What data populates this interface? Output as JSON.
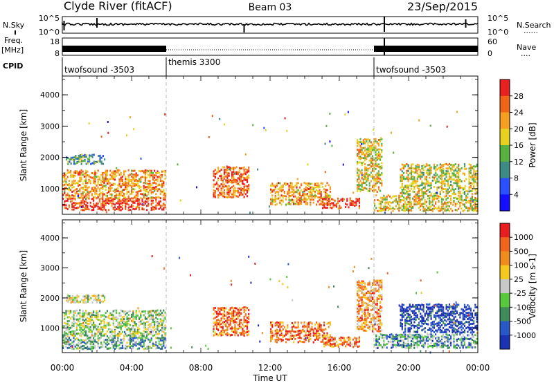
{
  "header": {
    "station": "Clyde River (fitACF)",
    "beam": "Beam 03",
    "date": "23/Sep/2015"
  },
  "noise_panel": {
    "left_label": "N.Sky",
    "left_ticks": [
      "10^5",
      "10^0"
    ],
    "right_ticks": [
      "10^5",
      "10^0"
    ],
    "right_label": "N.Search",
    "right_legend_mark": "......"
  },
  "freq_panel": {
    "label_line1": "Freq.",
    "label_line2": "[MHz]",
    "left_ticks": [
      "18",
      "8"
    ],
    "right_ticks": [
      "60",
      "0"
    ],
    "right_label": "Nave",
    "right_legend_mark": "...."
  },
  "cpid": {
    "label": "CPID",
    "segments": [
      {
        "name": "twofsound -3503",
        "start_hour": 0
      },
      {
        "name": "themis 3300",
        "start_hour": 6
      },
      {
        "name": "twofsound -3503",
        "start_hour": 18
      }
    ]
  },
  "chart_data": [
    {
      "type": "heatmap",
      "panel": "power",
      "ylabel": "Slant Range [km]",
      "yticks": [
        "1000",
        "2000",
        "3000",
        "4000"
      ],
      "ylim": [
        180,
        4600
      ],
      "xlim_hours": [
        0,
        24
      ],
      "colorbar_label": "Power [dB]",
      "colorbar_ticks": [
        "4",
        "8",
        "12",
        "16",
        "20",
        "24",
        "28"
      ],
      "colors": [
        "#1410ff",
        "#2a50ff",
        "#3e8a84",
        "#58b040",
        "#e6d21e",
        "#f5a020",
        "#f06418",
        "#e82020"
      ],
      "scatter_bands": [
        {
          "t0": 0.0,
          "t1": 6.0,
          "r0": 300,
          "r1": 700,
          "level": 0.9
        },
        {
          "t0": 0.0,
          "t1": 6.0,
          "r0": 700,
          "r1": 1600,
          "level": 0.7
        },
        {
          "t0": 0.2,
          "t1": 2.5,
          "r0": 1800,
          "r1": 2100,
          "level": 0.35
        },
        {
          "t0": 8.7,
          "t1": 10.8,
          "r0": 700,
          "r1": 1700,
          "level": 0.8
        },
        {
          "t0": 12.0,
          "t1": 15.5,
          "r0": 500,
          "r1": 1200,
          "level": 0.7
        },
        {
          "t0": 15.0,
          "t1": 17.2,
          "r0": 350,
          "r1": 700,
          "level": 0.9
        },
        {
          "t0": 17.0,
          "t1": 18.5,
          "r0": 900,
          "r1": 2600,
          "level": 0.6
        },
        {
          "t0": 18.0,
          "t1": 24.0,
          "r0": 300,
          "r1": 800,
          "level": 0.6
        },
        {
          "t0": 19.5,
          "t1": 24.0,
          "r0": 800,
          "r1": 1800,
          "level": 0.55
        }
      ]
    },
    {
      "type": "heatmap",
      "panel": "velocity",
      "ylabel": "Slant Range [km]",
      "yticks": [
        "1000",
        "2000",
        "3000",
        "4000"
      ],
      "ylim": [
        180,
        4600
      ],
      "xlim_hours": [
        0,
        24
      ],
      "colorbar_label": "Velocity [m s-1]",
      "colorbar_ticks": [
        "1000",
        "500",
        "100",
        "25",
        "-25",
        "-100",
        "-500",
        "-1000"
      ],
      "colors": [
        "#1c32b4",
        "#2a58c8",
        "#3f8b5a",
        "#58c83c",
        "#c8c8c8",
        "#f5c81e",
        "#f08c1e",
        "#f0641e",
        "#e81e1e"
      ],
      "scatter_bands": [
        {
          "t0": 0.0,
          "t1": 6.0,
          "r0": 300,
          "r1": 700,
          "level": 0.35
        },
        {
          "t0": 0.0,
          "t1": 6.0,
          "r0": 700,
          "r1": 1600,
          "level": 0.45
        },
        {
          "t0": 0.2,
          "t1": 2.5,
          "r0": 1800,
          "r1": 2100,
          "level": 0.5
        },
        {
          "t0": 8.7,
          "t1": 10.8,
          "r0": 700,
          "r1": 1700,
          "level": 0.8
        },
        {
          "t0": 12.0,
          "t1": 15.5,
          "r0": 500,
          "r1": 1200,
          "level": 0.8
        },
        {
          "t0": 15.0,
          "t1": 17.2,
          "r0": 350,
          "r1": 700,
          "level": 0.75
        },
        {
          "t0": 17.0,
          "t1": 18.5,
          "r0": 900,
          "r1": 2600,
          "level": 0.7
        },
        {
          "t0": 18.0,
          "t1": 24.0,
          "r0": 300,
          "r1": 800,
          "level": 0.3
        },
        {
          "t0": 19.5,
          "t1": 24.0,
          "r0": 800,
          "r1": 1800,
          "level": 0.05
        }
      ]
    }
  ],
  "x_axis": {
    "label": "Time UT",
    "ticks": [
      "00:00",
      "04:00",
      "08:00",
      "12:00",
      "16:00",
      "20:00",
      "00:00"
    ]
  }
}
